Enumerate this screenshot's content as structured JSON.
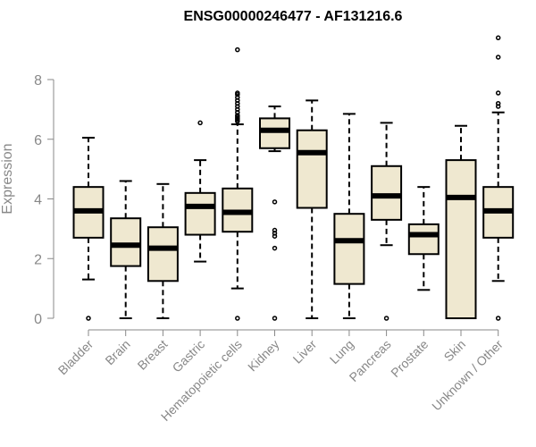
{
  "chart_data": {
    "type": "boxplot",
    "title": "ENSG00000246477 - AF131216.6",
    "ylabel": "Expression",
    "ylim": [
      0,
      9.5
    ],
    "yticks": [
      0,
      2,
      4,
      6,
      8
    ],
    "grid": false,
    "box_color": "#efe8d0",
    "categories": [
      "Bladder",
      "Brain",
      "Breast",
      "Gastric",
      "Hematopoietic cells",
      "Kidney",
      "Liver",
      "Lung",
      "Pancreas",
      "Prostate",
      "Skin",
      "Unknown / Other"
    ],
    "boxes": [
      {
        "whisker_low": 1.3,
        "q1": 2.7,
        "median": 3.6,
        "q3": 4.4,
        "whisker_high": 6.05,
        "outliers": [
          0
        ]
      },
      {
        "whisker_low": 0,
        "q1": 1.75,
        "median": 2.45,
        "q3": 3.35,
        "whisker_high": 4.6,
        "outliers": []
      },
      {
        "whisker_low": 0,
        "q1": 1.25,
        "median": 2.35,
        "q3": 3.05,
        "whisker_high": 4.5,
        "outliers": []
      },
      {
        "whisker_low": 1.9,
        "q1": 2.8,
        "median": 3.75,
        "q3": 4.2,
        "whisker_high": 5.3,
        "outliers": [
          6.55
        ]
      },
      {
        "whisker_low": 1.0,
        "q1": 2.9,
        "median": 3.55,
        "q3": 4.35,
        "whisker_high": 6.5,
        "outliers": [
          0,
          6.6,
          6.65,
          6.7,
          6.75,
          6.8,
          6.9,
          7.0,
          7.1,
          7.2,
          7.3,
          7.4,
          7.5,
          7.55,
          9.0
        ]
      },
      {
        "whisker_low": 5.6,
        "q1": 5.7,
        "median": 6.3,
        "q3": 6.7,
        "whisker_high": 7.1,
        "outliers": [
          0,
          2.35,
          2.75,
          2.85,
          2.95,
          3.9
        ]
      },
      {
        "whisker_low": 0,
        "q1": 3.7,
        "median": 5.55,
        "q3": 6.3,
        "whisker_high": 7.3,
        "outliers": []
      },
      {
        "whisker_low": 0,
        "q1": 1.15,
        "median": 2.6,
        "q3": 3.5,
        "whisker_high": 6.85,
        "outliers": []
      },
      {
        "whisker_low": 2.45,
        "q1": 3.3,
        "median": 4.1,
        "q3": 5.1,
        "whisker_high": 6.55,
        "outliers": [
          0
        ]
      },
      {
        "whisker_low": 0.95,
        "q1": 2.15,
        "median": 2.8,
        "q3": 3.15,
        "whisker_high": 4.4,
        "outliers": []
      },
      {
        "whisker_low": 0,
        "q1": 0,
        "median": 4.05,
        "q3": 5.3,
        "whisker_high": 6.45,
        "outliers": []
      },
      {
        "whisker_low": 1.25,
        "q1": 2.7,
        "median": 3.6,
        "q3": 4.4,
        "whisker_high": 6.9,
        "outliers": [
          0,
          7.1,
          7.2,
          7.55,
          8.75,
          9.4
        ]
      }
    ]
  }
}
